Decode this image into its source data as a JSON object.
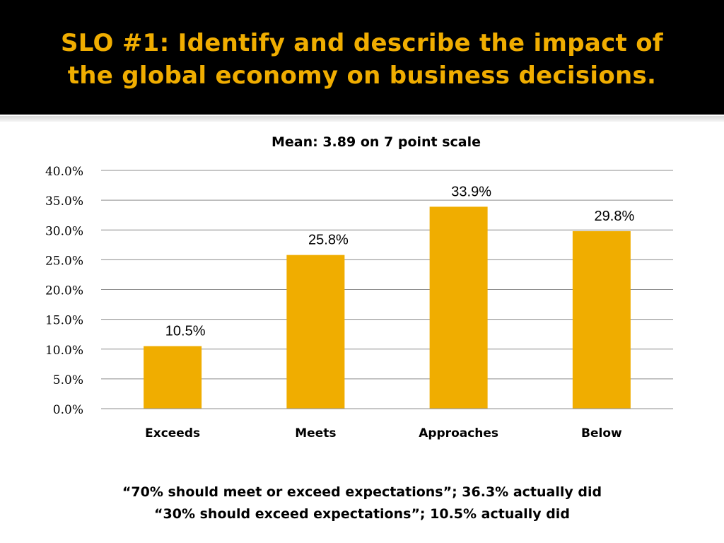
{
  "slide": {
    "title_lines": [
      "SLO #1:  Identify and describe the impact of",
      "the global economy on business decisions."
    ],
    "footnotes": [
      "“70% should meet or exceed expectations”; 36.3% actually did",
      "“30% should exceed expectations”; 10.5% actually did"
    ]
  },
  "colors": {
    "header_bg": "#000000",
    "title": "#f0ad00",
    "bar": "#f0ad00",
    "grid": "#8c8c8c"
  },
  "chart_data": {
    "type": "bar",
    "title": "Mean: 3.89 on 7 point scale",
    "categories": [
      "Exceeds",
      "Meets",
      "Approaches",
      "Below"
    ],
    "values": [
      10.5,
      25.8,
      33.9,
      29.8
    ],
    "data_labels": [
      "10.5%",
      "25.8%",
      "33.9%",
      "29.8%"
    ],
    "y_ticks": [
      0,
      5,
      10,
      15,
      20,
      25,
      30,
      35,
      40
    ],
    "y_tick_labels": [
      "0.0%",
      "5.0%",
      "10.0%",
      "15.0%",
      "20.0%",
      "25.0%",
      "30.0%",
      "35.0%",
      "40.0%"
    ],
    "ylim": [
      0,
      40
    ],
    "grid": true,
    "legend": "none",
    "xlabel": "",
    "ylabel": ""
  }
}
